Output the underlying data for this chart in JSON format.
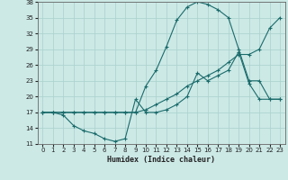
{
  "xlabel": "Humidex (Indice chaleur)",
  "bg_color": "#cce9e6",
  "grid_color": "#aed4d0",
  "line_color": "#1a6b6b",
  "xlim": [
    -0.5,
    23.5
  ],
  "ylim": [
    11,
    38
  ],
  "xticks": [
    0,
    1,
    2,
    3,
    4,
    5,
    6,
    7,
    8,
    9,
    10,
    11,
    12,
    13,
    14,
    15,
    16,
    17,
    18,
    19,
    20,
    21,
    22,
    23
  ],
  "yticks": [
    11,
    14,
    17,
    20,
    23,
    26,
    29,
    32,
    35,
    38
  ],
  "line1_x": [
    0,
    1,
    2,
    3,
    4,
    5,
    6,
    7,
    8,
    9,
    10,
    11,
    12,
    13,
    14,
    15,
    16,
    17,
    18,
    19,
    20,
    21,
    22,
    23
  ],
  "line1_y": [
    17,
    17,
    16.5,
    14.5,
    13.5,
    13,
    12,
    11.5,
    12,
    19.5,
    17,
    17,
    17.5,
    18.5,
    20,
    24.5,
    23,
    24,
    25,
    28.5,
    22.5,
    19.5,
    19.5,
    19.5
  ],
  "line2_x": [
    0,
    1,
    2,
    3,
    4,
    5,
    6,
    7,
    8,
    9,
    10,
    11,
    12,
    13,
    14,
    15,
    16,
    17,
    18,
    19,
    20,
    21,
    22,
    23
  ],
  "line2_y": [
    17,
    17,
    17,
    17,
    17,
    17,
    17,
    17,
    17,
    17,
    17.5,
    18.5,
    19.5,
    20.5,
    22,
    23,
    24,
    25,
    26.5,
    28,
    28,
    29,
    33,
    35
  ],
  "line3_x": [
    0,
    1,
    2,
    3,
    4,
    5,
    6,
    7,
    8,
    9,
    10,
    11,
    12,
    13,
    14,
    15,
    16,
    17,
    18,
    19,
    20,
    21,
    22,
    23
  ],
  "line3_y": [
    17,
    17,
    17,
    17,
    17,
    17,
    17,
    17,
    17,
    17,
    22,
    25,
    29.5,
    34.5,
    37,
    38,
    37.5,
    36.5,
    35,
    29,
    23,
    23,
    19.5,
    19.5
  ]
}
